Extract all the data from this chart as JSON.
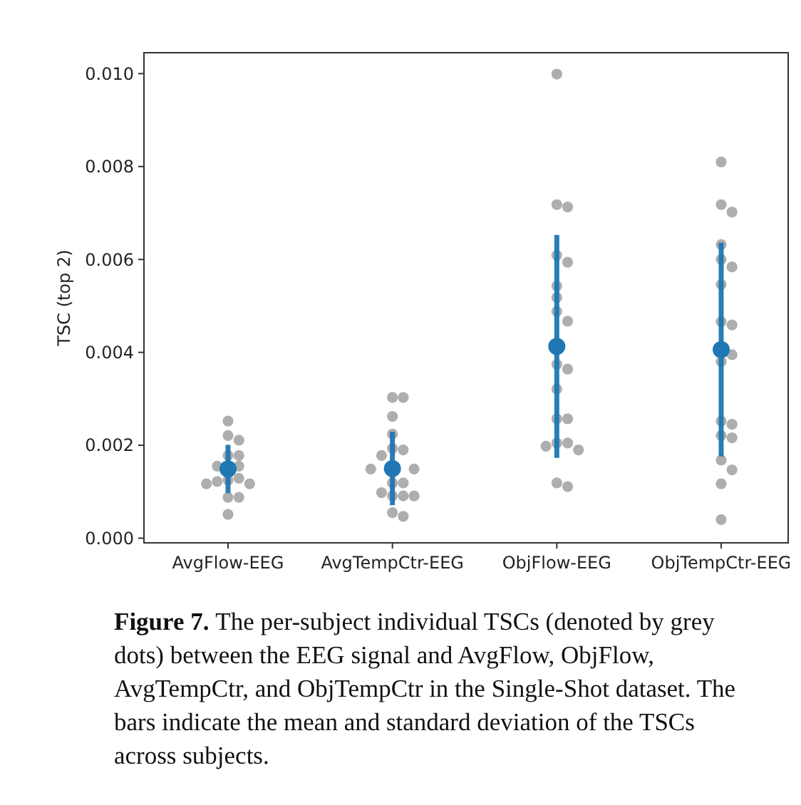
{
  "chart_data": {
    "type": "scatter",
    "ylabel": "TSC (top 2)",
    "categories": [
      "AvgFlow-EEG",
      "AvgTempCtr-EEG",
      "ObjFlow-EEG",
      "ObjTempCtr-EEG"
    ],
    "ylim": [
      -0.0001,
      0.01045
    ],
    "yticks": [
      {
        "value": 0,
        "label": "0.000"
      },
      {
        "value": 0.002,
        "label": "0.002"
      },
      {
        "value": 0.004,
        "label": "0.004"
      },
      {
        "value": 0.006,
        "label": "0.006"
      },
      {
        "value": 0.008,
        "label": "0.008"
      },
      {
        "value": 0.01,
        "label": "0.010"
      }
    ],
    "grid": false,
    "legend": false,
    "marker": "circle",
    "series": [
      {
        "color": "#a0a0a0",
        "x": [
          "AvgFlow-EEG",
          "AvgFlow-EEG",
          "AvgFlow-EEG",
          "AvgFlow-EEG",
          "AvgFlow-EEG",
          "AvgFlow-EEG",
          "AvgFlow-EEG",
          "AvgFlow-EEG",
          "AvgFlow-EEG",
          "AvgFlow-EEG",
          "AvgFlow-EEG",
          "AvgFlow-EEG",
          "AvgFlow-EEG",
          "AvgFlow-EEG",
          "AvgFlow-EEG",
          "AvgTempCtr-EEG",
          "AvgTempCtr-EEG",
          "AvgTempCtr-EEG",
          "AvgTempCtr-EEG",
          "AvgTempCtr-EEG",
          "AvgTempCtr-EEG",
          "AvgTempCtr-EEG",
          "AvgTempCtr-EEG",
          "AvgTempCtr-EEG",
          "AvgTempCtr-EEG",
          "AvgTempCtr-EEG",
          "AvgTempCtr-EEG",
          "AvgTempCtr-EEG",
          "AvgTempCtr-EEG",
          "AvgTempCtr-EEG",
          "AvgTempCtr-EEG",
          "AvgTempCtr-EEG",
          "ObjFlow-EEG",
          "ObjFlow-EEG",
          "ObjFlow-EEG",
          "ObjFlow-EEG",
          "ObjFlow-EEG",
          "ObjFlow-EEG",
          "ObjFlow-EEG",
          "ObjFlow-EEG",
          "ObjFlow-EEG",
          "ObjFlow-EEG",
          "ObjFlow-EEG",
          "ObjFlow-EEG",
          "ObjFlow-EEG",
          "ObjFlow-EEG",
          "ObjFlow-EEG",
          "ObjFlow-EEG",
          "ObjFlow-EEG",
          "ObjFlow-EEG",
          "ObjFlow-EEG",
          "ObjFlow-EEG",
          "ObjTempCtr-EEG",
          "ObjTempCtr-EEG",
          "ObjTempCtr-EEG",
          "ObjTempCtr-EEG",
          "ObjTempCtr-EEG",
          "ObjTempCtr-EEG",
          "ObjTempCtr-EEG",
          "ObjTempCtr-EEG",
          "ObjTempCtr-EEG",
          "ObjTempCtr-EEG",
          "ObjTempCtr-EEG",
          "ObjTempCtr-EEG",
          "ObjTempCtr-EEG",
          "ObjTempCtr-EEG",
          "ObjTempCtr-EEG",
          "ObjTempCtr-EEG",
          "ObjTempCtr-EEG",
          "ObjTempCtr-EEG",
          "ObjTempCtr-EEG"
        ],
        "values": [
          0.00252,
          0.00221,
          0.00211,
          0.00178,
          0.00178,
          0.00155,
          0.00155,
          0.00129,
          0.00125,
          0.00122,
          0.00117,
          0.00117,
          0.00088,
          0.00088,
          0.00051,
          0.00303,
          0.00303,
          0.00262,
          0.00224,
          0.00193,
          0.0019,
          0.00178,
          0.00149,
          0.00149,
          0.00119,
          0.00119,
          0.00098,
          0.00091,
          0.00091,
          0.00091,
          0.00055,
          0.00047,
          0.00999,
          0.00718,
          0.00713,
          0.00609,
          0.00594,
          0.00543,
          0.00518,
          0.00488,
          0.00467,
          0.00374,
          0.00364,
          0.00321,
          0.00257,
          0.00257,
          0.00205,
          0.00205,
          0.00198,
          0.0019,
          0.00119,
          0.00111,
          0.0081,
          0.00718,
          0.00702,
          0.00632,
          0.006,
          0.00584,
          0.00546,
          0.00466,
          0.00459,
          0.00395,
          0.0038,
          0.00252,
          0.00245,
          0.00221,
          0.00216,
          0.00168,
          0.00147,
          0.00117,
          0.0004
        ]
      },
      {
        "color": "#1f77b4",
        "x": [
          "AvgFlow-EEG",
          "AvgTempCtr-EEG",
          "ObjFlow-EEG",
          "ObjTempCtr-EEG"
        ],
        "values": [
          0.00149,
          0.0015,
          0.00413,
          0.00406
        ],
        "errors": [
          0.00052,
          0.00079,
          0.0024,
          0.0023
        ]
      }
    ],
    "annotations": [
      "Figure 7.",
      "The per-subject individual TSCs (denoted by grey dots) between the EEG signal and AvgFlow, ObjFlow, AvgTempCtr, and ObjTempCtr in the Single-Shot dataset. The bars indicate the mean and standard deviation of the TSCs across subjects."
    ]
  }
}
